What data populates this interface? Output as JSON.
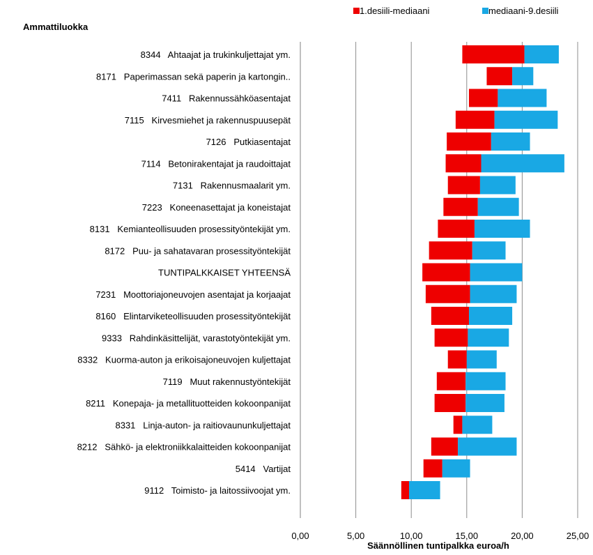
{
  "chart_data": {
    "type": "bar",
    "orientation": "horizontal-stacked-floating",
    "title": "",
    "category_axis_title": "Ammattiluokka",
    "xlabel": "Säännöllinen tuntipalkka euroa/h",
    "xlim": [
      0,
      25
    ],
    "x_ticks": [
      "0,00",
      "5,00",
      "10,00",
      "15,00",
      "20,00",
      "25,00"
    ],
    "x_tick_values": [
      0,
      5,
      10,
      15,
      20,
      25
    ],
    "grid": "vertical",
    "legend_position": "top-right",
    "series": [
      {
        "name": "1.desiili-mediaani",
        "color": "#ee0000"
      },
      {
        "name": "mediaani-9.desiili",
        "color": "#19a8e4"
      }
    ],
    "categories": [
      "8344   Ahtaajat ja trukinkuljettajat ym.",
      "8171   Paperimassan sekä paperin ja kartongin..",
      "7411   Rakennussähköasentajat",
      "7115   Kirvesmiehet ja rakennuspuusepät",
      "7126   Putkiasentajat",
      "7114   Betonirakentajat ja raudoittajat",
      "7131   Rakennusmaalarit ym.",
      "7223   Koneenasettajat ja koneistajat",
      "8131   Kemianteollisuuden prosessityöntekijät ym.",
      "8172   Puu- ja sahatavaran prosessityöntekijät",
      "TUNTIPALKKAISET YHTEENSÄ",
      "7231   Moottoriajoneuvojen asentajat ja korjaajat",
      "8160   Elintarviketeollisuuden prosessityöntekijät",
      "9333   Rahdinkäsittelijät, varastotyöntekijät ym.",
      "8332   Kuorma-auton ja erikoisajoneuvojen kuljettajat",
      "7119   Muut rakennustyöntekijät",
      "8211   Konepaja- ja metallituotteiden kokoonpanijat",
      "8331   Linja-auton- ja raitiovaununkuljettajat",
      "8212   Sähkö- ja elektroniikkalaitteiden kokoonpanijat",
      "5414   Vartijat",
      "9112   Toimisto- ja laitossiivoojat ym."
    ],
    "d1": [
      14.6,
      16.8,
      15.2,
      14.0,
      13.2,
      13.1,
      13.3,
      12.9,
      12.4,
      11.6,
      11.0,
      11.3,
      11.8,
      12.1,
      13.3,
      12.3,
      12.1,
      13.8,
      11.8,
      11.1,
      9.1
    ],
    "median": [
      20.2,
      19.1,
      17.8,
      17.5,
      17.2,
      16.3,
      16.2,
      16.0,
      15.7,
      15.5,
      15.3,
      15.3,
      15.2,
      15.1,
      15.0,
      14.9,
      14.9,
      14.6,
      14.2,
      12.8,
      9.8
    ],
    "d9": [
      23.3,
      21.0,
      22.2,
      23.2,
      20.7,
      23.8,
      19.4,
      19.7,
      20.7,
      18.5,
      20.0,
      19.5,
      19.1,
      18.8,
      17.7,
      18.5,
      18.4,
      17.3,
      19.5,
      15.3,
      12.6
    ]
  }
}
